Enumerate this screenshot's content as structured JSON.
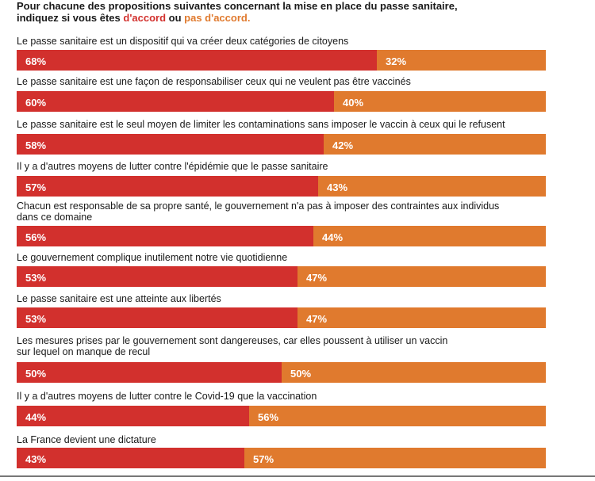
{
  "header": {
    "line1": "Pour chacune des propositions suivantes concernant la mise en place du passe sanitaire,",
    "line2_pre": "indiquez si vous êtes ",
    "agree_label": "d'accord",
    "line2_mid": " ou ",
    "disagree_label": "pas d'accord."
  },
  "colors": {
    "agree": "#d2302d",
    "disagree": "#e07a2e"
  },
  "chart_data": {
    "type": "bar",
    "orientation": "horizontal-stacked",
    "series": [
      {
        "name": "d'accord",
        "values": [
          68,
          60,
          58,
          57,
          56,
          53,
          53,
          50,
          44,
          43
        ]
      },
      {
        "name": "pas d'accord",
        "values": [
          32,
          40,
          42,
          43,
          44,
          47,
          47,
          50,
          56,
          57
        ]
      }
    ],
    "categories": [
      [
        "Le passe sanitaire est un dispositif qui va créer deux catégories de citoyens"
      ],
      [
        "Le passe sanitaire est une façon de responsabiliser ceux qui ne veulent pas être vaccinés"
      ],
      [
        "Le passe sanitaire est le seul moyen de limiter les contaminations sans imposer le vaccin à ceux qui le refusent"
      ],
      [
        "Il y a d'autres moyens de lutter contre l'épidémie que le passe sanitaire"
      ],
      [
        "Chacun est responsable de sa propre santé, le gouvernement n'a pas à imposer des contraintes aux individus",
        "dans ce domaine"
      ],
      [
        "Le gouvernement complique inutilement notre vie quotidienne"
      ],
      [
        "Le passe sanitaire est une atteinte aux libertés"
      ],
      [
        "Les mesures prises par le gouvernement sont dangereuses, car elles poussent à utiliser un vaccin",
        "sur lequel on manque de recul"
      ],
      [
        "Il y a d'autres moyens de lutter contre le Covid-19 que la vaccination"
      ],
      [
        "La France devient une dictature"
      ]
    ],
    "labels_agree": [
      "68%",
      "60%",
      "58%",
      "57%",
      "56%",
      "53%",
      "53%",
      "50%",
      "44%",
      "43%"
    ],
    "labels_disagree": [
      "32%",
      "40%",
      "42%",
      "43%",
      "44%",
      "47%",
      "47%",
      "50%",
      "56%",
      "57%"
    ],
    "xlim": [
      0,
      100
    ]
  }
}
